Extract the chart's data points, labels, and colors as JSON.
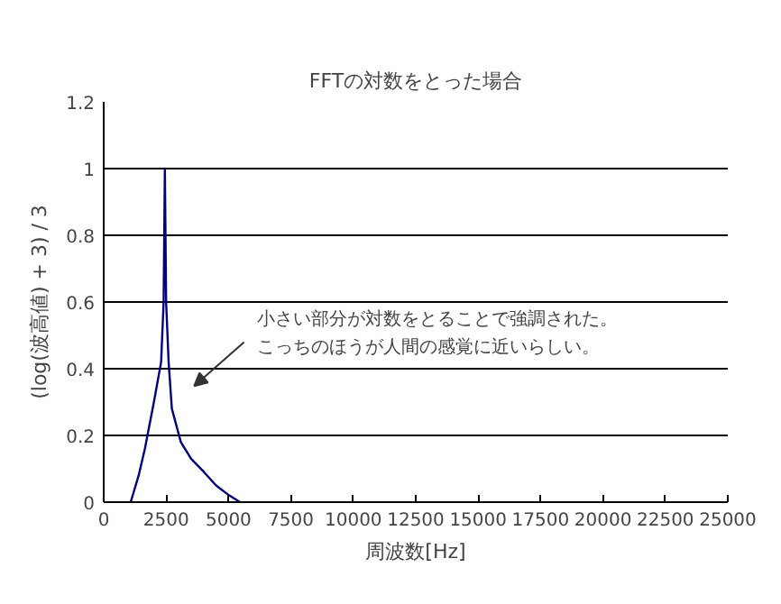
{
  "chart_data": {
    "type": "line",
    "title": "FFTの対数をとった場合",
    "xlabel": "周波数[Hz]",
    "ylabel": "(log(波高値) + 3) / 3",
    "x": [
      1080,
      1400,
      1650,
      2010,
      2300,
      2400,
      2450,
      2500,
      2600,
      2730,
      3090,
      3500,
      4020,
      4500,
      5030,
      5460
    ],
    "series": [
      {
        "color": "#000080",
        "values": [
          0,
          0.08,
          0.16,
          0.3,
          0.42,
          0.6,
          1.0,
          0.6,
          0.42,
          0.28,
          0.18,
          0.13,
          0.09,
          0.05,
          0.02,
          0
        ]
      }
    ],
    "xlim": [
      0,
      25000
    ],
    "xticks": [
      0,
      2500,
      5000,
      7500,
      10000,
      12500,
      15000,
      17500,
      20000,
      22500,
      25000
    ],
    "ylim": [
      0,
      1.2
    ],
    "yticks": [
      0,
      {
        "value": 0.2,
        "label": "0.2"
      },
      {
        "value": 0.4,
        "label": "0.4"
      },
      {
        "value": 0.6,
        "label": "0.6"
      },
      {
        "value": 0.8,
        "label": "0.8"
      },
      1,
      {
        "value": 1.2,
        "label": "1.2"
      }
    ],
    "annotations": [
      "小さい部分が対数をとることで強調された。",
      "こっちのほうが人間の感覚に近いらしい。"
    ],
    "grid": "y",
    "marker": "none",
    "line_style": "solid"
  }
}
